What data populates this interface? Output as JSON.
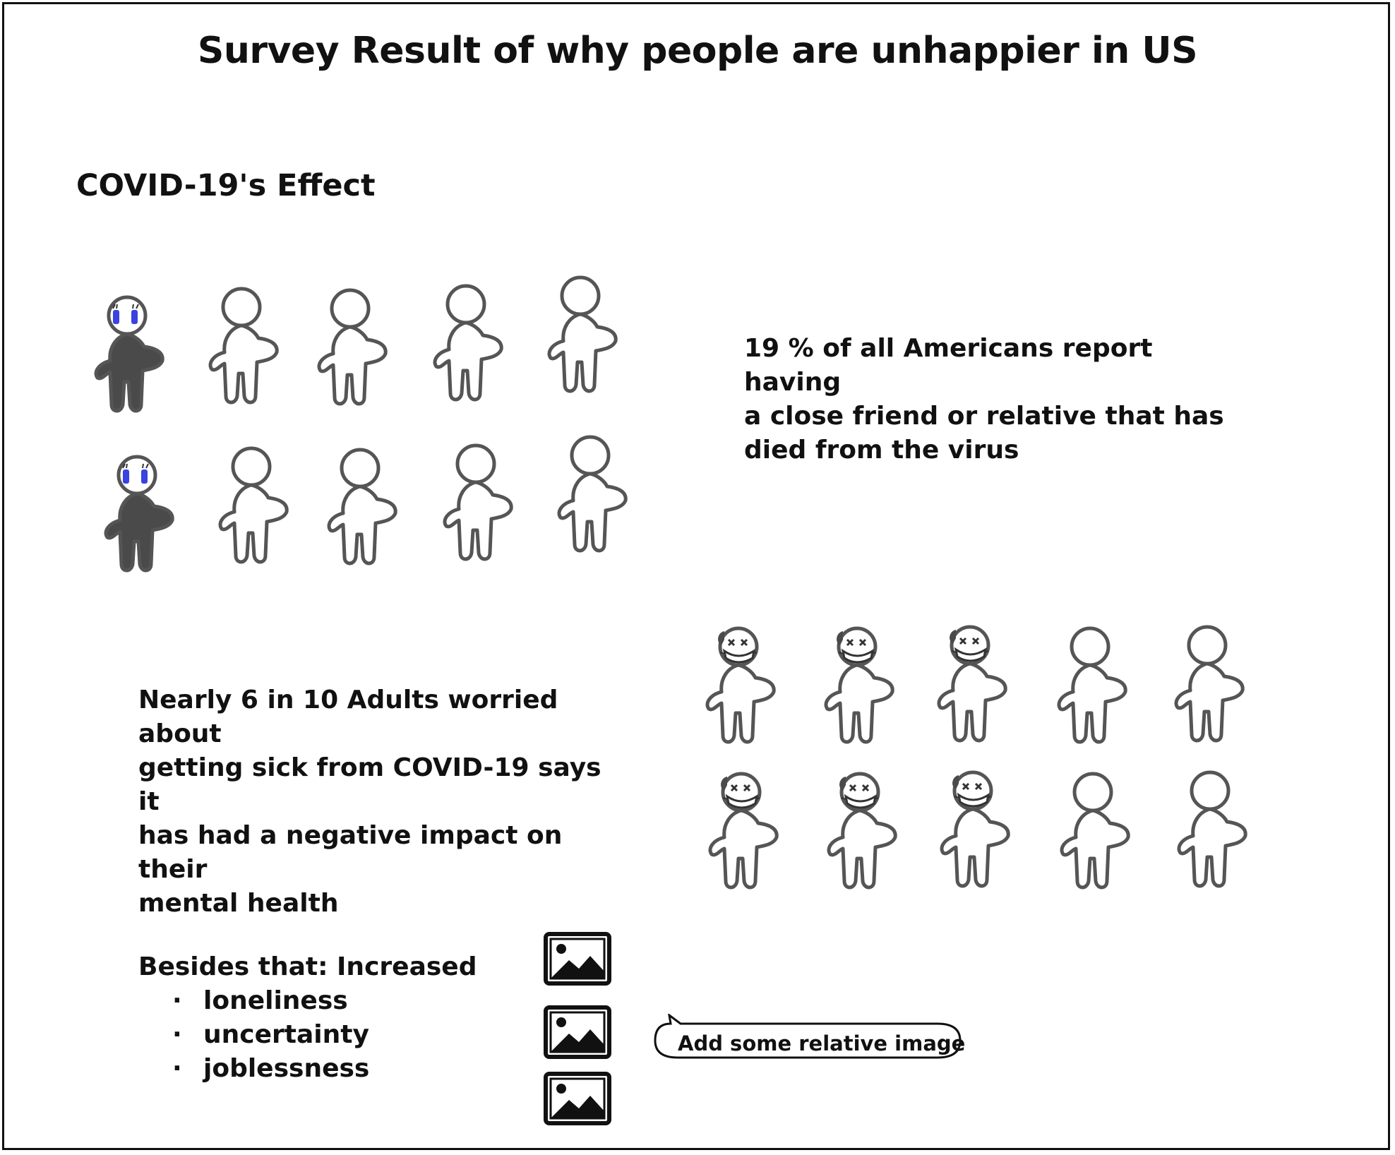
{
  "page": {
    "title": "Survey Result of why people are unhappier in US",
    "section_heading": "COVID-19's Effect"
  },
  "stat_deaths": {
    "lines": [
      "19 % of all Americans report having",
      "a close friend or relative that has",
      "died from the virus"
    ],
    "figures_total": 10,
    "figures_highlighted": 2,
    "highlight_style": "crying figure with dark body and blue eyes"
  },
  "stat_mental_health": {
    "lines": [
      "Nearly 6 in 10 Adults worried about",
      "getting sick from COVID-19 says it",
      "has had a negative impact on their",
      "mental health"
    ],
    "figures_total": 10,
    "figures_highlighted": 6,
    "highlight_style": "masked figure with x eyes"
  },
  "extras": {
    "heading": "Besides that: Increased",
    "items": [
      "loneliness",
      "uncertainty",
      "joblessness"
    ]
  },
  "image_placeholders": {
    "count": 3,
    "icon": "image-placeholder-icon"
  },
  "callout": {
    "text": "Add some relative image",
    "icon": "speech-bubble"
  },
  "colors": {
    "stroke": "#555555",
    "dark_fill": "#4a4a4a",
    "tear_blue": "#3a43e0",
    "ink": "#111111"
  }
}
